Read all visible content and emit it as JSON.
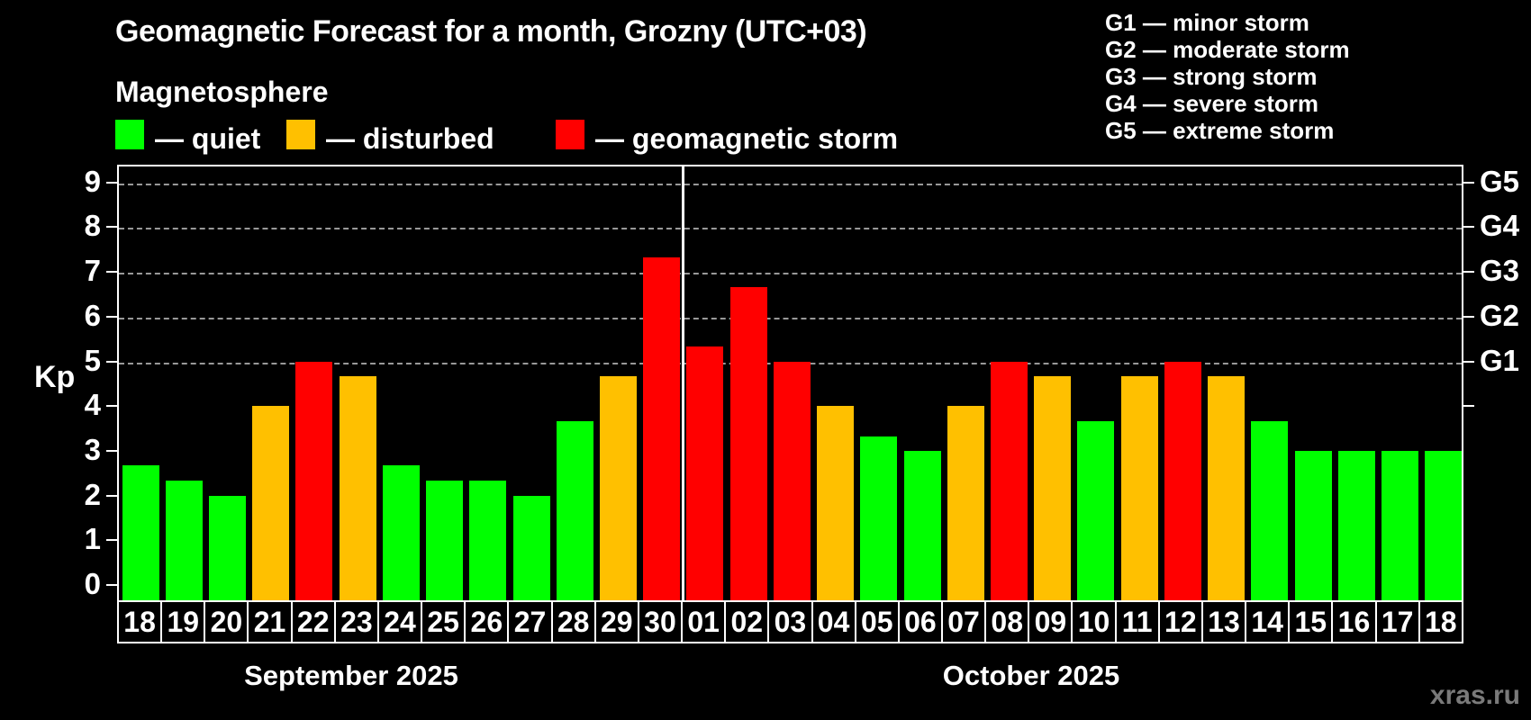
{
  "header": {
    "title": "Geomagnetic Forecast for a month, Grozny (UTC+03)",
    "subtitle": "Magnetosphere"
  },
  "legend": {
    "quiet_label": "— quiet",
    "disturbed_label": "— disturbed",
    "storm_label": "— geomagnetic storm"
  },
  "g_legend": [
    "G1 — minor storm",
    "G2 — moderate storm",
    "G3 — strong storm",
    "G4 — severe storm",
    "G5 — extreme storm"
  ],
  "watermark": "xras.ru",
  "colors": {
    "quiet": "#00FF00",
    "disturbed": "#FFC000",
    "storm": "#FF0000",
    "background": "#000000",
    "grid": "#AAAAAA",
    "watermark": "#7A7A7A"
  },
  "chart_data": {
    "type": "bar",
    "title": "Geomagnetic Forecast for a month, Grozny (UTC+03)",
    "ylabel": "Kp",
    "ylim": [
      0,
      9.38
    ],
    "grid": "dashed horizontal at Kp 5-9",
    "legend_position": "top",
    "kp_ticks": [
      "0",
      "1",
      "2",
      "3",
      "4",
      "5",
      "6",
      "7",
      "8",
      "9"
    ],
    "right_axis_tick_kp": [
      4,
      5,
      6,
      7,
      8,
      9
    ],
    "right_axis_labels": [
      {
        "kp": 5,
        "label": "G1"
      },
      {
        "kp": 6,
        "label": "G2"
      },
      {
        "kp": 7,
        "label": "G3"
      },
      {
        "kp": 8,
        "label": "G4"
      },
      {
        "kp": 9,
        "label": "G5"
      }
    ],
    "months": [
      {
        "label": "September 2025"
      },
      {
        "label": "October 2025"
      }
    ],
    "days": [
      {
        "date": "18",
        "month": 0,
        "kp": 2.67,
        "status": "quiet"
      },
      {
        "date": "19",
        "month": 0,
        "kp": 2.33,
        "status": "quiet"
      },
      {
        "date": "20",
        "month": 0,
        "kp": 2.0,
        "status": "quiet"
      },
      {
        "date": "21",
        "month": 0,
        "kp": 4.0,
        "status": "disturbed"
      },
      {
        "date": "22",
        "month": 0,
        "kp": 5.0,
        "status": "storm"
      },
      {
        "date": "23",
        "month": 0,
        "kp": 4.67,
        "status": "disturbed"
      },
      {
        "date": "24",
        "month": 0,
        "kp": 2.67,
        "status": "quiet"
      },
      {
        "date": "25",
        "month": 0,
        "kp": 2.33,
        "status": "quiet"
      },
      {
        "date": "26",
        "month": 0,
        "kp": 2.33,
        "status": "quiet"
      },
      {
        "date": "27",
        "month": 0,
        "kp": 2.0,
        "status": "quiet"
      },
      {
        "date": "28",
        "month": 0,
        "kp": 3.67,
        "status": "quiet"
      },
      {
        "date": "29",
        "month": 0,
        "kp": 4.67,
        "status": "disturbed"
      },
      {
        "date": "30",
        "month": 0,
        "kp": 7.33,
        "status": "storm"
      },
      {
        "date": "01",
        "month": 1,
        "kp": 5.33,
        "status": "storm"
      },
      {
        "date": "02",
        "month": 1,
        "kp": 6.67,
        "status": "storm"
      },
      {
        "date": "03",
        "month": 1,
        "kp": 5.0,
        "status": "storm"
      },
      {
        "date": "04",
        "month": 1,
        "kp": 4.0,
        "status": "disturbed"
      },
      {
        "date": "05",
        "month": 1,
        "kp": 3.33,
        "status": "quiet"
      },
      {
        "date": "06",
        "month": 1,
        "kp": 3.0,
        "status": "quiet"
      },
      {
        "date": "07",
        "month": 1,
        "kp": 4.0,
        "status": "disturbed"
      },
      {
        "date": "08",
        "month": 1,
        "kp": 5.0,
        "status": "storm"
      },
      {
        "date": "09",
        "month": 1,
        "kp": 4.67,
        "status": "disturbed"
      },
      {
        "date": "10",
        "month": 1,
        "kp": 3.67,
        "status": "quiet"
      },
      {
        "date": "11",
        "month": 1,
        "kp": 4.67,
        "status": "disturbed"
      },
      {
        "date": "12",
        "month": 1,
        "kp": 5.0,
        "status": "storm"
      },
      {
        "date": "13",
        "month": 1,
        "kp": 4.67,
        "status": "disturbed"
      },
      {
        "date": "14",
        "month": 1,
        "kp": 3.67,
        "status": "quiet"
      },
      {
        "date": "15",
        "month": 1,
        "kp": 3.0,
        "status": "quiet"
      },
      {
        "date": "16",
        "month": 1,
        "kp": 3.0,
        "status": "quiet"
      },
      {
        "date": "17",
        "month": 1,
        "kp": 3.0,
        "status": "quiet"
      },
      {
        "date": "18",
        "month": 1,
        "kp": 3.0,
        "status": "quiet"
      }
    ]
  }
}
